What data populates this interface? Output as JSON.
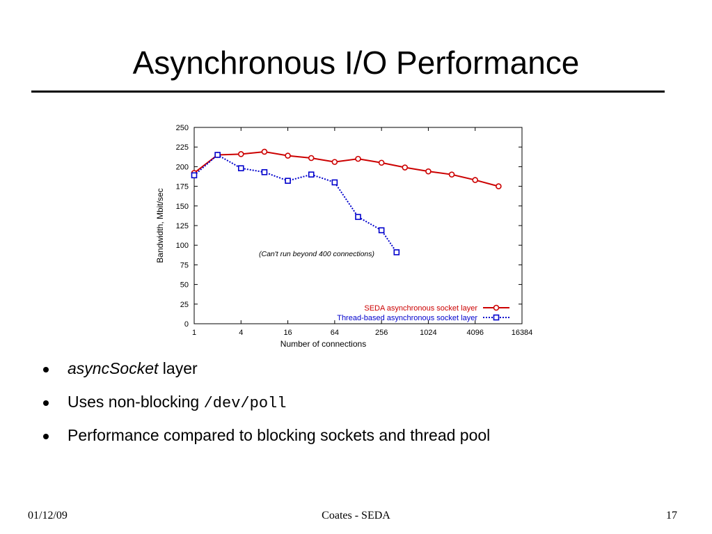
{
  "slide": {
    "title": "Asynchronous I/O Performance",
    "bullets": [
      {
        "emph": "asyncSocket",
        "rest": " layer"
      },
      {
        "text": "Uses non-blocking ",
        "code": "/dev/poll"
      },
      {
        "text": "Performance compared to blocking sockets and thread pool"
      }
    ],
    "footer": {
      "date": "01/12/09",
      "center": "Coates - SEDA",
      "page": "17"
    }
  },
  "chart_data": {
    "type": "line",
    "title": "",
    "xlabel": "Number of connections",
    "ylabel": "Bandwidth, Mbit/sec",
    "x_scale": "log2",
    "x_ticks": [
      1,
      4,
      16,
      64,
      256,
      1024,
      4096,
      16384
    ],
    "xlim": [
      1,
      16384
    ],
    "y_ticks": [
      0,
      25,
      50,
      75,
      100,
      125,
      150,
      175,
      200,
      225,
      250
    ],
    "ylim": [
      0,
      250
    ],
    "legend_position": "bottom-right",
    "annotation": "(Can't run beyond 400 connections)",
    "series": [
      {
        "name": "SEDA asynchronous socket layer",
        "color": "#cc0000",
        "marker": "circle",
        "line": "solid",
        "x": [
          1,
          2,
          4,
          8,
          16,
          32,
          64,
          128,
          256,
          512,
          1024,
          2048,
          4096,
          8192
        ],
        "y": [
          192,
          215,
          216,
          219,
          214,
          211,
          206,
          210,
          205,
          199,
          194,
          190,
          183,
          175
        ]
      },
      {
        "name": "Thread-based asynchronous socket layer",
        "color": "#0000cc",
        "marker": "square",
        "line": "dotted",
        "x": [
          1,
          2,
          4,
          8,
          16,
          32,
          64,
          128,
          256,
          400
        ],
        "y": [
          189,
          215,
          198,
          193,
          182,
          190,
          180,
          136,
          119,
          91
        ]
      }
    ]
  }
}
